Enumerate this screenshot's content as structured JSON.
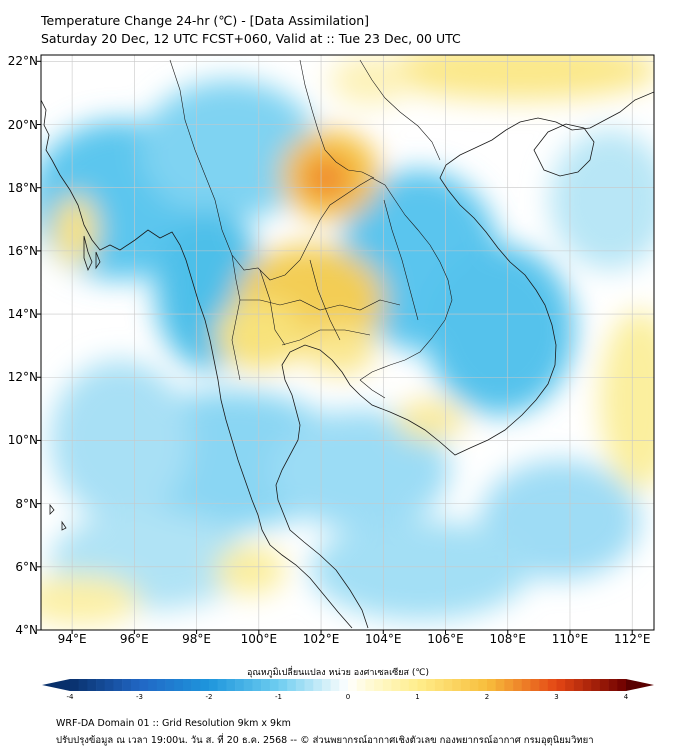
{
  "header": {
    "title": "Temperature Change 24-hr (℃) - [Data Assimilation]",
    "subtitle": "Saturday 20 Dec, 12 UTC FCST+060, Valid at :: Tue 23 Dec, 00 UTC"
  },
  "map": {
    "lat_ticks": [
      "22°N",
      "20°N",
      "18°N",
      "16°N",
      "14°N",
      "12°N",
      "10°N",
      "8°N",
      "6°N",
      "4°N"
    ],
    "lon_ticks": [
      "94°E",
      "96°E",
      "98°E",
      "100°E",
      "102°E",
      "104°E",
      "106°E",
      "108°E",
      "110°E",
      "112°E"
    ],
    "lat_range": [
      4,
      22.2
    ],
    "lon_range": [
      93,
      112.7
    ],
    "grid": true
  },
  "colorbar": {
    "label": "อุณหภูมิเปลี่ยนแปลง หน่วย องศาเซลเซียส (℃)",
    "ticks": [
      "-4",
      "-3",
      "-2",
      "-1",
      "0",
      "1",
      "2",
      "3",
      "4"
    ],
    "range": [
      -4,
      4
    ]
  },
  "footer": {
    "line1": "WRF-DA Domain 01 :: Grid Resolution 9km x 9km",
    "line2": "ปรับปรุงข้อมูล ณ เวลา 19:00น. วัน ส. ที่ 20 ธ.ค. 2568 -- © ส่วนพยากรณ์อากาศเชิงตัวเลข กองพยากรณ์อากาศ กรมอุตุนิยมวิทยา"
  },
  "colors": {
    "cold_min": "#08306b",
    "cold_mid": "#1d91c0",
    "cold_light": "#bfe6f5",
    "neutral": "#ffffff",
    "warm_light": "#fff2a8",
    "warm_mid": "#f7b733",
    "warm_max": "#7f0000",
    "gridline": "#c8c8c8",
    "coastline": "#1a1a1a"
  }
}
